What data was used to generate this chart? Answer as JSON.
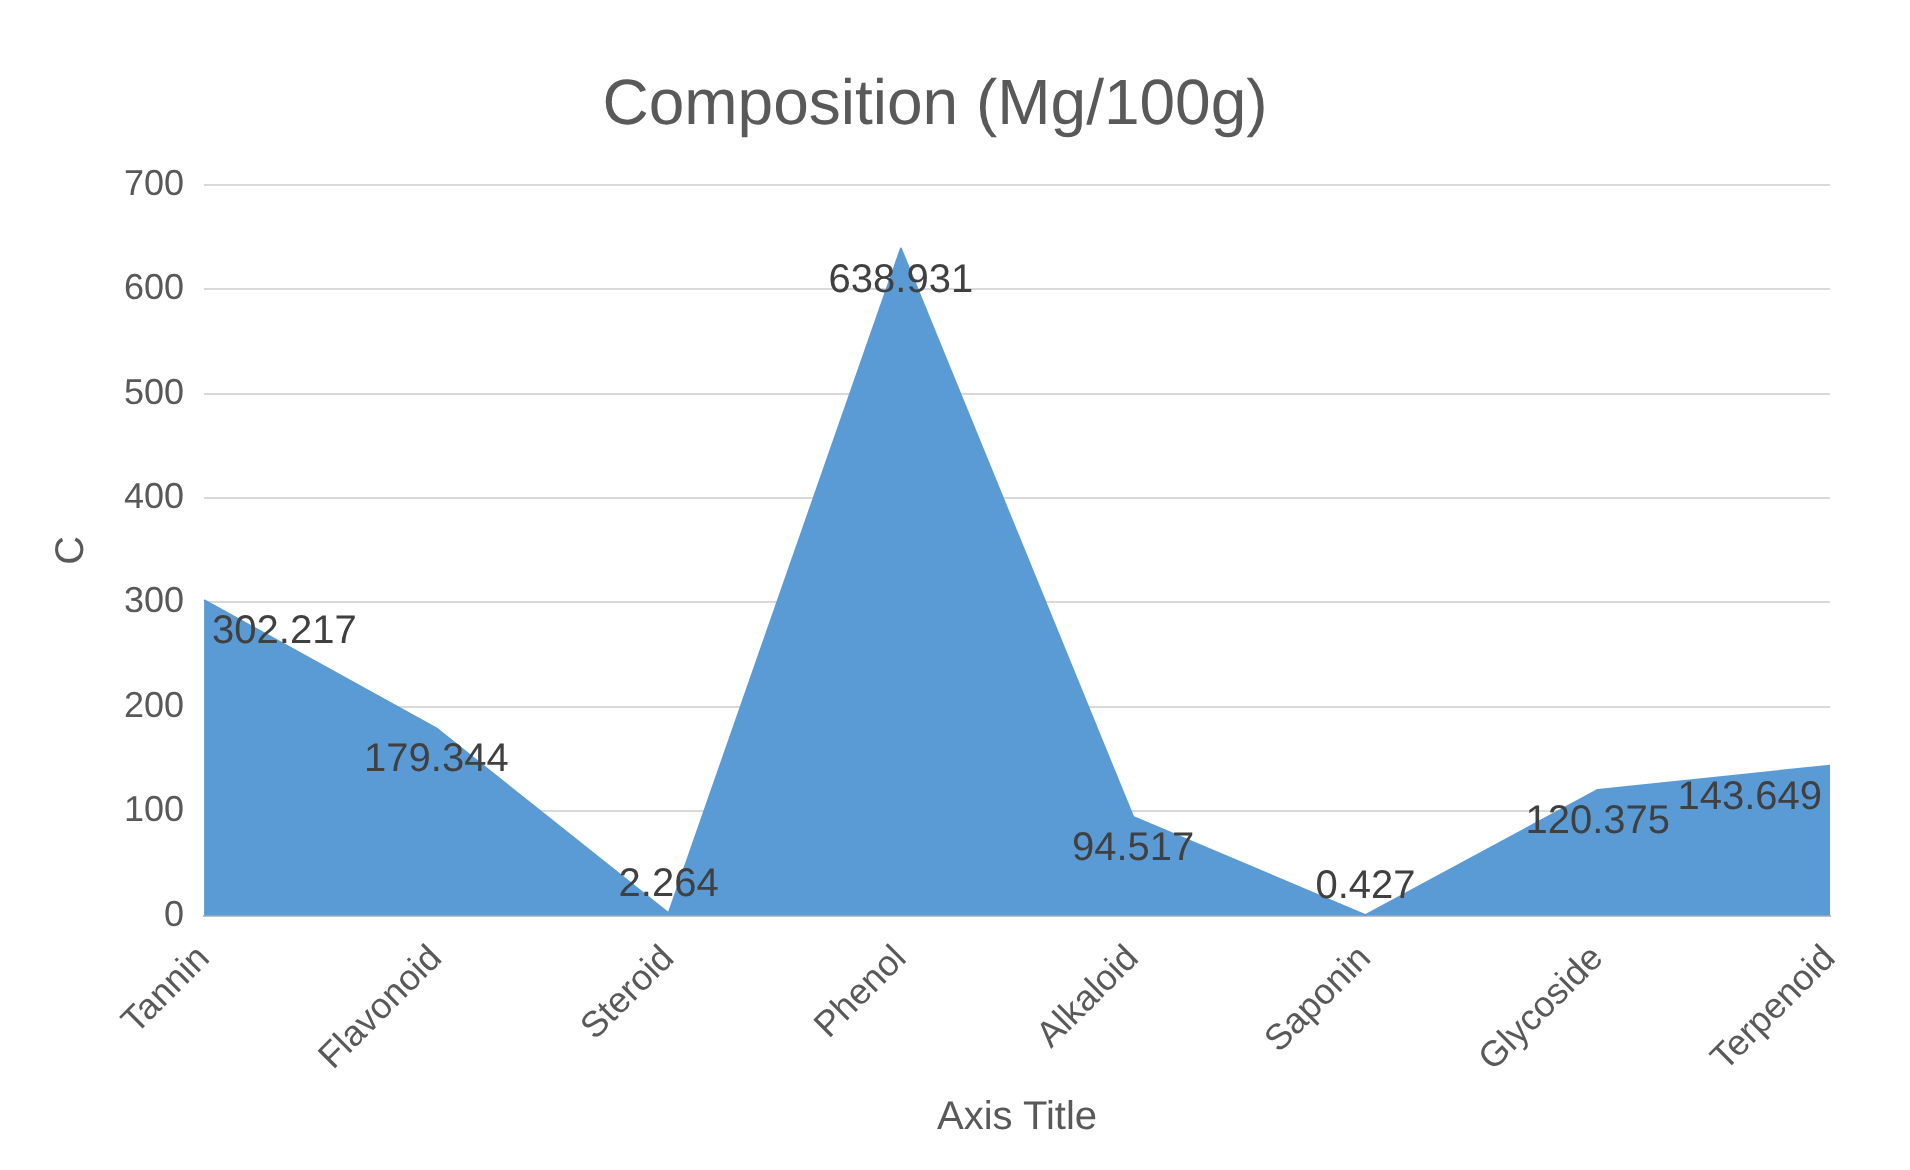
{
  "chart_data": {
    "type": "area",
    "title": "Composition (Mg/100g)",
    "xlabel": "Axis Title",
    "ylabel": "C",
    "categories": [
      "Tannin",
      "Flavonoid",
      "Steroid",
      "Phenol",
      "Alkaloid",
      "Saponin",
      "Glycoside",
      "Terpenoid"
    ],
    "values": [
      302.217,
      179.344,
      2.264,
      638.931,
      94.517,
      0.427,
      120.375,
      143.649
    ],
    "color": "#5b9bd5",
    "ylim": [
      0,
      700
    ],
    "yticks": [
      0,
      100,
      200,
      300,
      400,
      500,
      600,
      700
    ],
    "grid": "y",
    "data_labels": true,
    "legend": false
  }
}
